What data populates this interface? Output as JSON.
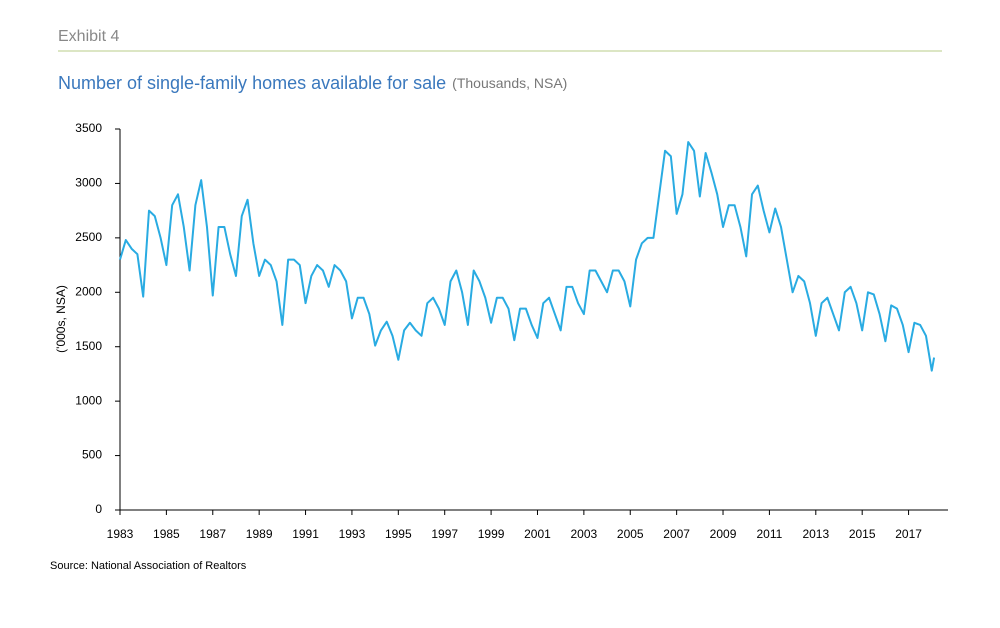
{
  "exhibit": "Exhibit 4",
  "chart_data": {
    "type": "line",
    "title": "Number of single-family homes available for sale",
    "subtitle": "(Thousands, NSA)",
    "y_label": "('000s, NSA)",
    "source": "Source: National Association of Realtors",
    "x": [
      1983,
      1983.25,
      1983.5,
      1983.75,
      1984,
      1984.25,
      1984.5,
      1984.75,
      1985,
      1985.25,
      1985.5,
      1985.75,
      1986,
      1986.25,
      1986.5,
      1986.75,
      1987,
      1987.25,
      1987.5,
      1987.75,
      1988,
      1988.25,
      1988.5,
      1988.75,
      1989,
      1989.25,
      1989.5,
      1989.75,
      1990,
      1990.25,
      1990.5,
      1990.75,
      1991,
      1991.25,
      1991.5,
      1991.75,
      1992,
      1992.25,
      1992.5,
      1992.75,
      1993,
      1993.25,
      1993.5,
      1993.75,
      1994,
      1994.25,
      1994.5,
      1994.75,
      1995,
      1995.25,
      1995.5,
      1995.75,
      1996,
      1996.25,
      1996.5,
      1996.75,
      1997,
      1997.25,
      1997.5,
      1997.75,
      1998,
      1998.25,
      1998.5,
      1998.75,
      1999,
      1999.25,
      1999.5,
      1999.75,
      2000,
      2000.25,
      2000.5,
      2000.75,
      2001,
      2001.25,
      2001.5,
      2001.75,
      2002,
      2002.25,
      2002.5,
      2002.75,
      2003,
      2003.25,
      2003.5,
      2003.75,
      2004,
      2004.25,
      2004.5,
      2004.75,
      2005,
      2005.25,
      2005.5,
      2005.75,
      2006,
      2006.25,
      2006.5,
      2006.75,
      2007,
      2007.25,
      2007.5,
      2007.75,
      2008,
      2008.25,
      2008.5,
      2008.75,
      2009,
      2009.25,
      2009.5,
      2009.75,
      2010,
      2010.25,
      2010.5,
      2010.75,
      2011,
      2011.25,
      2011.5,
      2011.75,
      2012,
      2012.25,
      2012.5,
      2012.75,
      2013,
      2013.25,
      2013.5,
      2013.75,
      2014,
      2014.25,
      2014.5,
      2014.75,
      2015,
      2015.25,
      2015.5,
      2015.75,
      2016,
      2016.25,
      2016.5,
      2016.75,
      2017,
      2017.25,
      2017.5,
      2017.75,
      2018,
      2018.1
    ],
    "series": [
      {
        "name": "Homes available for sale",
        "color": "#29abe2",
        "values": [
          2300,
          2480,
          2400,
          2350,
          1960,
          2750,
          2700,
          2500,
          2250,
          2800,
          2900,
          2600,
          2200,
          2800,
          3030,
          2600,
          1970,
          2600,
          2600,
          2350,
          2150,
          2700,
          2850,
          2450,
          2150,
          2300,
          2250,
          2100,
          1700,
          2300,
          2300,
          2250,
          1900,
          2150,
          2250,
          2200,
          2050,
          2250,
          2200,
          2100,
          1760,
          1950,
          1950,
          1800,
          1510,
          1650,
          1730,
          1600,
          1380,
          1650,
          1720,
          1650,
          1600,
          1900,
          1950,
          1850,
          1700,
          2100,
          2200,
          2000,
          1700,
          2200,
          2100,
          1950,
          1720,
          1950,
          1950,
          1850,
          1560,
          1850,
          1850,
          1700,
          1580,
          1900,
          1950,
          1800,
          1650,
          2050,
          2050,
          1900,
          1800,
          2200,
          2200,
          2100,
          2000,
          2200,
          2200,
          2100,
          1870,
          2300,
          2450,
          2500,
          2500,
          2900,
          3300,
          3250,
          2720,
          2900,
          3380,
          3300,
          2880,
          3280,
          3100,
          2900,
          2600,
          2800,
          2800,
          2600,
          2330,
          2900,
          2980,
          2750,
          2550,
          2770,
          2600,
          2300,
          2000,
          2150,
          2100,
          1900,
          1600,
          1900,
          1950,
          1800,
          1650,
          2000,
          2050,
          1900,
          1650,
          2000,
          1980,
          1800,
          1550,
          1880,
          1850,
          1700,
          1450,
          1720,
          1700,
          1600,
          1280,
          1400
        ]
      }
    ],
    "xlim": [
      1983,
      2018.7
    ],
    "xticks": [
      1983,
      1985,
      1987,
      1989,
      1991,
      1993,
      1995,
      1997,
      1999,
      2001,
      2003,
      2005,
      2007,
      2009,
      2011,
      2013,
      2015,
      2017
    ],
    "ylim": [
      0,
      3500
    ],
    "yticks": [
      0,
      500,
      1000,
      1500,
      2000,
      2500,
      3000,
      3500
    ],
    "grid": false
  }
}
